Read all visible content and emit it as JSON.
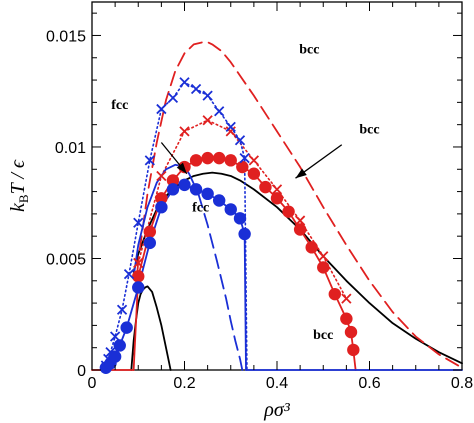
{
  "chart_data": {
    "type": "line",
    "title": "",
    "xlabel": "ρσ³",
    "ylabel_parts": {
      "main": "k",
      "sub": "B",
      "rest": "T / ϵ"
    },
    "xlim": [
      0,
      0.8
    ],
    "ylim": [
      0,
      0.0165
    ],
    "x_ticks": [
      0,
      0.2,
      0.4,
      0.6,
      0.8
    ],
    "x_tick_labels": [
      "0",
      "0.2",
      "0.4",
      "0.6",
      "0.8"
    ],
    "y_ticks": [
      0,
      0.005,
      0.01,
      0.015
    ],
    "y_tick_labels": [
      "0",
      "0.005",
      "0.01",
      "0.015"
    ],
    "grid": false,
    "legend": "none",
    "series": [
      {
        "color": "#000000",
        "style": "solid",
        "marker": "none",
        "x": [
          0.085,
          0.09,
          0.095,
          0.1,
          0.105,
          0.11,
          0.115,
          0.12,
          0.13,
          0.14,
          0.15,
          0.16,
          0.17
        ],
        "y": [
          0,
          0.0013,
          0.0022,
          0.003,
          0.0034,
          0.0036,
          0.0037,
          0.00375,
          0.0035,
          0.0028,
          0.002,
          0.001,
          0
        ]
      },
      {
        "color": "#000000",
        "style": "solid",
        "marker": "none",
        "x": [
          0.09,
          0.1,
          0.12,
          0.14,
          0.16,
          0.18,
          0.2,
          0.22,
          0.24,
          0.26,
          0.28,
          0.3,
          0.32,
          0.35,
          0.4,
          0.45,
          0.5,
          0.55,
          0.6,
          0.65,
          0.7,
          0.75,
          0.8
        ],
        "y": [
          0.0044,
          0.0052,
          0.0063,
          0.0072,
          0.0078,
          0.0082,
          0.0085,
          0.0087,
          0.0088,
          0.00885,
          0.0088,
          0.0087,
          0.0085,
          0.0081,
          0.0073,
          0.0063,
          0.0051,
          0.004,
          0.003,
          0.0021,
          0.0014,
          0.0008,
          0.0003
        ]
      },
      {
        "color": "#e02020",
        "style": "dashed",
        "marker": "none",
        "x": [
          0.095,
          0.1,
          0.12,
          0.14,
          0.16,
          0.18,
          0.2,
          0.22,
          0.24,
          0.25,
          0.26,
          0.28,
          0.3,
          0.32,
          0.35,
          0.4,
          0.45,
          0.5,
          0.55,
          0.6,
          0.65,
          0.7,
          0.75,
          0.8
        ],
        "y": [
          0.0035,
          0.0049,
          0.0079,
          0.0102,
          0.0121,
          0.0134,
          0.0142,
          0.0146,
          0.0147,
          0.0147,
          0.0146,
          0.0143,
          0.0138,
          0.0132,
          0.0123,
          0.0107,
          0.0091,
          0.0073,
          0.0056,
          0.004,
          0.0026,
          0.0015,
          0.0007,
          0.0001
        ]
      },
      {
        "color": "#e02020",
        "style": "dotted",
        "marker": "cross",
        "x": [
          0.1,
          0.15,
          0.2,
          0.25,
          0.3,
          0.35,
          0.4,
          0.45,
          0.5,
          0.55
        ],
        "y": [
          0.0048,
          0.0087,
          0.0107,
          0.0112,
          0.0107,
          0.0094,
          0.0081,
          0.0067,
          0.0051,
          0.0032
        ]
      },
      {
        "color": "#e02020",
        "style": "solid",
        "marker": "circle",
        "x": [
          0.09,
          0.1,
          0.125,
          0.15,
          0.175,
          0.2,
          0.225,
          0.25,
          0.275,
          0.3,
          0.325,
          0.35,
          0.375,
          0.4,
          0.425,
          0.45,
          0.475,
          0.5,
          0.525,
          0.55,
          0.56,
          0.565,
          0.57
        ],
        "y": [
          0,
          0.0042,
          0.0062,
          0.0077,
          0.0085,
          0.0091,
          0.0094,
          0.0095,
          0.0095,
          0.0094,
          0.0091,
          0.0088,
          0.0082,
          0.0077,
          0.0071,
          0.0063,
          0.0055,
          0.0046,
          0.0034,
          0.0023,
          0.0017,
          0.0009,
          0
        ]
      },
      {
        "color": "#1a2fd6",
        "style": "dotted",
        "marker": "cross",
        "x": [
          0.03,
          0.035,
          0.04,
          0.05,
          0.065,
          0.08,
          0.1,
          0.125,
          0.15,
          0.175,
          0.2,
          0.225,
          0.25,
          0.275,
          0.3,
          0.32,
          0.33,
          0.335
        ],
        "y": [
          0.0002,
          0.0005,
          0.0008,
          0.0015,
          0.0027,
          0.0043,
          0.0066,
          0.0094,
          0.0117,
          0.0122,
          0.0129,
          0.0126,
          0.0123,
          0.0116,
          0.0109,
          0.0103,
          0.0095,
          0
        ]
      },
      {
        "color": "#1a2fd6",
        "style": "solid",
        "marker": "circle",
        "x": [
          0.03,
          0.04,
          0.05,
          0.06,
          0.075,
          0.1,
          0.125,
          0.15,
          0.175,
          0.2,
          0.225,
          0.25,
          0.275,
          0.3,
          0.32,
          0.33,
          0.333
        ],
        "y": [
          0.0001,
          0.0003,
          0.0006,
          0.0011,
          0.0019,
          0.0037,
          0.0057,
          0.0073,
          0.0081,
          0.0083,
          0.0081,
          0.0079,
          0.0076,
          0.0072,
          0.0068,
          0.0061,
          0
        ]
      },
      {
        "color": "#1a2fd6",
        "style": "solid",
        "marker": "none",
        "x": [
          0.09,
          0.1,
          0.12,
          0.14,
          0.16,
          0.18,
          0.2,
          0.21,
          0.23
        ],
        "y": [
          0.0042,
          0.0056,
          0.0073,
          0.0084,
          0.009,
          0.0092,
          0.0091,
          0.0088,
          0.0079
        ]
      },
      {
        "color": "#1a2fd6",
        "style": "dashed",
        "marker": "none",
        "x": [
          0.23,
          0.25,
          0.27,
          0.29,
          0.3,
          0.31,
          0.32,
          0.325
        ],
        "y": [
          0.0079,
          0.0065,
          0.0049,
          0.0032,
          0.0022,
          0.0013,
          0.0005,
          0
        ]
      },
      {
        "color": "#1a2fd6",
        "style": "solid",
        "marker": "none",
        "x": [
          0.333,
          0.8
        ],
        "y": [
          0,
          0
        ]
      },
      {
        "color": "#e02020",
        "style": "solid",
        "marker": "none",
        "x": [
          0,
          0.09
        ],
        "y": [
          0,
          0
        ]
      }
    ],
    "annotations": [
      {
        "text": "bcc",
        "x": 0.47,
        "y": 0.0142
      },
      {
        "text": "fcc",
        "x": 0.06,
        "y": 0.0117
      },
      {
        "text": "bcc",
        "x": 0.6,
        "y": 0.0106
      },
      {
        "text": "fcc",
        "x": 0.235,
        "y": 0.0071
      },
      {
        "text": "bcc",
        "x": 0.5,
        "y": 0.0014
      }
    ],
    "arrows": [
      {
        "from": [
          0.15,
          0.0102
        ],
        "to": [
          0.205,
          0.0088
        ]
      },
      {
        "from": [
          0.54,
          0.0101
        ],
        "to": [
          0.44,
          0.0086
        ]
      }
    ]
  }
}
